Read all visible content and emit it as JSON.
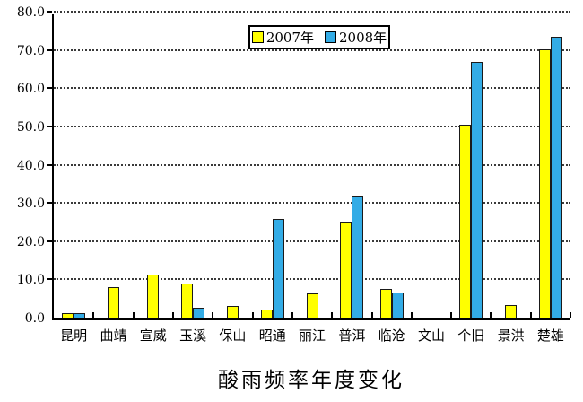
{
  "title": "酸雨频率年度变化",
  "legend": {
    "items": [
      {
        "label": "2007年",
        "color": "#FFFF00"
      },
      {
        "label": "2008年",
        "color": "#33ACE6"
      }
    ]
  },
  "colors": {
    "series_2007": "#FFFF00",
    "series_2008": "#33ACE6",
    "bar_border": "#1A1A1A",
    "axis": "#000000",
    "gridline": "#3A3A3A",
    "background": "#FFFFFF"
  },
  "chart_data": {
    "type": "bar",
    "title": "酸雨频率年度变化",
    "categories": [
      "昆明",
      "曲靖",
      "宣威",
      "玉溪",
      "保山",
      "昭通",
      "丽江",
      "普洱",
      "临沧",
      "文山",
      "个旧",
      "景洪",
      "楚雄"
    ],
    "series": [
      {
        "name": "2007年",
        "color": "#FFFF00",
        "values": [
          1.2,
          8.0,
          11.2,
          8.8,
          3.1,
          2.2,
          6.4,
          25.0,
          7.4,
          0,
          50.5,
          3.3,
          70.2
        ]
      },
      {
        "name": "2008年",
        "color": "#33ACE6",
        "values": [
          1.2,
          0,
          0,
          2.6,
          0,
          25.8,
          0,
          32.0,
          6.6,
          0,
          66.8,
          0,
          73.5
        ]
      }
    ],
    "xlabel": "",
    "ylabel": "",
    "ylim": [
      0,
      80
    ],
    "ytick_step": 10,
    "ytick_labels": [
      "0.0",
      "10.0",
      "20.0",
      "30.0",
      "40.0",
      "50.0",
      "60.0",
      "70.0",
      "80.0"
    ],
    "grid": "horizontal-dotted",
    "legend_position": "top-center"
  }
}
